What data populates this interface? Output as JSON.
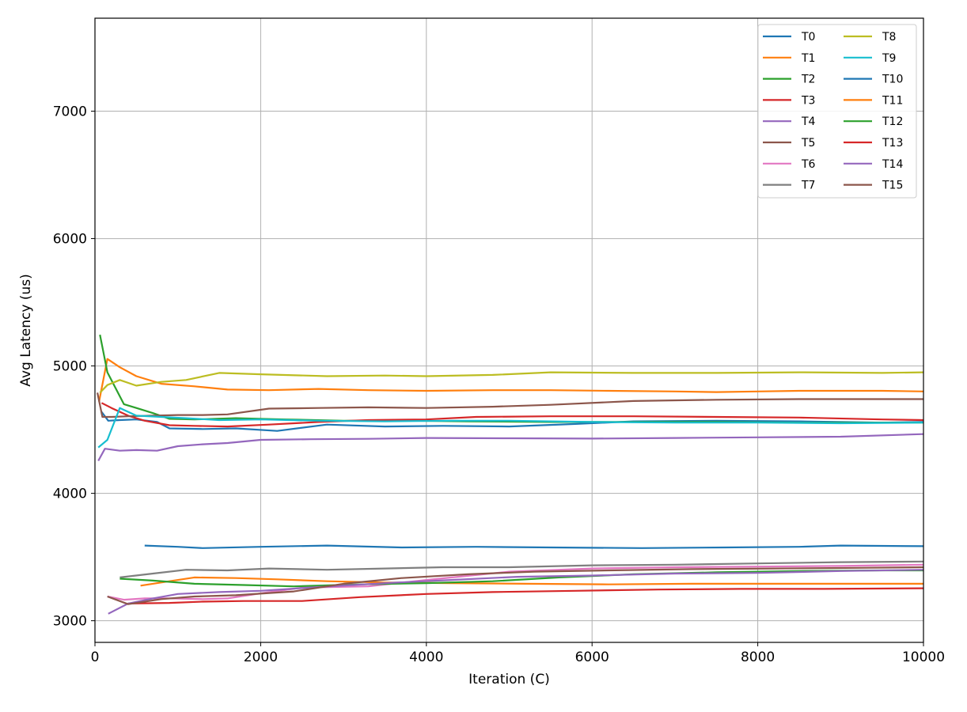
{
  "chart_data": {
    "type": "line",
    "title": "",
    "xlabel": "Iteration (C)",
    "ylabel": "Avg Latency (us)",
    "xlim": [
      0,
      10000
    ],
    "ylim": [
      2830,
      7730
    ],
    "xticks": [
      0,
      2000,
      4000,
      6000,
      8000,
      10000
    ],
    "yticks": [
      3000,
      4000,
      5000,
      6000,
      7000
    ],
    "grid": true,
    "legend": {
      "placement": "top-right",
      "columns": 2
    },
    "series": [
      {
        "name": "T0",
        "color": "#1f77b4",
        "x": [
          80,
          160,
          300,
          500,
          750,
          900,
          1300,
          1700,
          2200,
          2800,
          3500,
          4200,
          5000,
          5800,
          6500,
          7500,
          8500,
          9500,
          10000
        ],
        "y": [
          4640,
          4570,
          4575,
          4580,
          4560,
          4510,
          4505,
          4510,
          4490,
          4540,
          4525,
          4530,
          4525,
          4545,
          4565,
          4570,
          4565,
          4555,
          4560
        ]
      },
      {
        "name": "T1",
        "color": "#ff7f0e",
        "x": [
          50,
          150,
          300,
          500,
          800,
          1200,
          1600,
          2100,
          2700,
          3300,
          4000,
          4800,
          5500,
          6200,
          7000,
          7500,
          8000,
          8500,
          9500,
          10000
        ],
        "y": [
          4720,
          5055,
          4990,
          4920,
          4860,
          4840,
          4815,
          4810,
          4820,
          4810,
          4805,
          4810,
          4810,
          4805,
          4800,
          4795,
          4800,
          4805,
          4805,
          4800
        ]
      },
      {
        "name": "T2",
        "color": "#2ca02c",
        "x": [
          60,
          150,
          350,
          500,
          700,
          900,
          1200,
          1700,
          2300,
          3000,
          3800,
          4500,
          5500,
          6500,
          7500,
          8500,
          9500,
          10000
        ],
        "y": [
          5245,
          4950,
          4700,
          4670,
          4630,
          4585,
          4580,
          4590,
          4580,
          4570,
          4570,
          4565,
          4560,
          4560,
          4560,
          4555,
          4555,
          4555
        ]
      },
      {
        "name": "T3",
        "color": "#d62728",
        "x": [
          80,
          200,
          400,
          600,
          900,
          1200,
          1600,
          2100,
          2700,
          3300,
          4000,
          4600,
          5500,
          6500,
          7500,
          8500,
          9500,
          10000
        ],
        "y": [
          4710,
          4670,
          4610,
          4570,
          4535,
          4530,
          4525,
          4540,
          4560,
          4575,
          4580,
          4600,
          4605,
          4605,
          4600,
          4595,
          4580,
          4575
        ]
      },
      {
        "name": "T4",
        "color": "#9467bd",
        "x": [
          40,
          120,
          300,
          500,
          750,
          1000,
          1300,
          1600,
          2000,
          2600,
          3300,
          4000,
          5000,
          6000,
          7000,
          8000,
          9000,
          10000
        ],
        "y": [
          4255,
          4350,
          4335,
          4340,
          4335,
          4370,
          4385,
          4395,
          4420,
          4425,
          4428,
          4435,
          4432,
          4430,
          4435,
          4440,
          4445,
          4465
        ]
      },
      {
        "name": "T5",
        "color": "#8c564b",
        "x": [
          30,
          90,
          200,
          400,
          700,
          1000,
          1300,
          1600,
          2100,
          2700,
          3300,
          4000,
          4800,
          5500,
          6500,
          7500,
          8500,
          9500,
          10000
        ],
        "y": [
          4790,
          4600,
          4600,
          4605,
          4610,
          4615,
          4615,
          4620,
          4665,
          4670,
          4675,
          4670,
          4680,
          4695,
          4725,
          4735,
          4740,
          4740,
          4740
        ]
      },
      {
        "name": "T6",
        "color": "#e377c2",
        "x": [
          150,
          350,
          600,
          900,
          1300,
          1600,
          2000,
          2500,
          3300,
          4000,
          5000,
          6000,
          7000,
          8000,
          9000,
          10000
        ],
        "y": [
          3190,
          3165,
          3175,
          3175,
          3170,
          3175,
          3215,
          3260,
          3270,
          3320,
          3385,
          3410,
          3420,
          3425,
          3430,
          3440
        ]
      },
      {
        "name": "T7",
        "color": "#7f7f7f",
        "x": [
          300,
          700,
          1100,
          1600,
          2100,
          2800,
          3500,
          4200,
          5000,
          6000,
          7000,
          8000,
          9000,
          10000
        ],
        "y": [
          3340,
          3370,
          3400,
          3395,
          3410,
          3400,
          3410,
          3420,
          3420,
          3435,
          3440,
          3450,
          3460,
          3465
        ]
      },
      {
        "name": "T8",
        "color": "#bcbd22",
        "x": [
          60,
          150,
          300,
          500,
          800,
          1100,
          1500,
          2000,
          2800,
          3500,
          4000,
          4800,
          5500,
          6500,
          7500,
          8500,
          9500,
          10000
        ],
        "y": [
          4790,
          4850,
          4890,
          4845,
          4875,
          4890,
          4945,
          4935,
          4920,
          4925,
          4920,
          4930,
          4950,
          4945,
          4945,
          4950,
          4945,
          4950
        ]
      },
      {
        "name": "T9",
        "color": "#17becf",
        "x": [
          40,
          150,
          300,
          500,
          800,
          1100,
          1500,
          2000,
          2700,
          3500,
          4300,
          5000,
          6000,
          7000,
          8000,
          9000,
          10000
        ],
        "y": [
          4360,
          4420,
          4670,
          4610,
          4600,
          4590,
          4575,
          4580,
          4570,
          4565,
          4570,
          4570,
          4560,
          4555,
          4555,
          4550,
          4555
        ]
      },
      {
        "name": "T10",
        "color": "#1f77b4",
        "x": [
          600,
          1000,
          1300,
          2000,
          2800,
          3700,
          4600,
          5500,
          6600,
          7600,
          8500,
          9000,
          10000
        ],
        "y": [
          3590,
          3580,
          3570,
          3580,
          3590,
          3575,
          3580,
          3575,
          3570,
          3575,
          3580,
          3590,
          3585
        ]
      },
      {
        "name": "T11",
        "color": "#ff7f0e",
        "x": [
          550,
          900,
          1200,
          1700,
          2200,
          2800,
          3500,
          4300,
          5200,
          6200,
          7200,
          8600,
          10000
        ],
        "y": [
          3275,
          3310,
          3340,
          3335,
          3325,
          3310,
          3300,
          3295,
          3290,
          3285,
          3290,
          3290,
          3290
        ]
      },
      {
        "name": "T12",
        "color": "#2ca02c",
        "x": [
          300,
          700,
          1200,
          1800,
          2400,
          3200,
          4000,
          4800,
          5600,
          6500,
          7500,
          8500,
          9500,
          10000
        ],
        "y": [
          3330,
          3315,
          3290,
          3280,
          3270,
          3285,
          3295,
          3310,
          3340,
          3365,
          3380,
          3390,
          3395,
          3395
        ]
      },
      {
        "name": "T13",
        "color": "#d62728",
        "x": [
          400,
          900,
          1300,
          1800,
          2500,
          3200,
          4000,
          4800,
          5800,
          6800,
          7800,
          8800,
          10000
        ],
        "y": [
          3135,
          3140,
          3150,
          3155,
          3155,
          3185,
          3210,
          3225,
          3235,
          3245,
          3250,
          3250,
          3255
        ]
      },
      {
        "name": "T14",
        "color": "#9467bd",
        "x": [
          160,
          400,
          700,
          1000,
          1500,
          2000,
          2700,
          3500,
          4300,
          5100,
          6000,
          7000,
          8000,
          9000,
          10000
        ],
        "y": [
          3055,
          3135,
          3175,
          3210,
          3225,
          3235,
          3265,
          3295,
          3320,
          3345,
          3355,
          3370,
          3375,
          3390,
          3400
        ]
      },
      {
        "name": "T15",
        "color": "#8c564b",
        "x": [
          150,
          400,
          800,
          1200,
          1700,
          2400,
          3000,
          3700,
          4500,
          5300,
          6200,
          7200,
          8200,
          9200,
          10000
        ],
        "y": [
          3190,
          3130,
          3170,
          3190,
          3200,
          3230,
          3290,
          3335,
          3365,
          3385,
          3395,
          3405,
          3410,
          3415,
          3420
        ]
      }
    ]
  }
}
